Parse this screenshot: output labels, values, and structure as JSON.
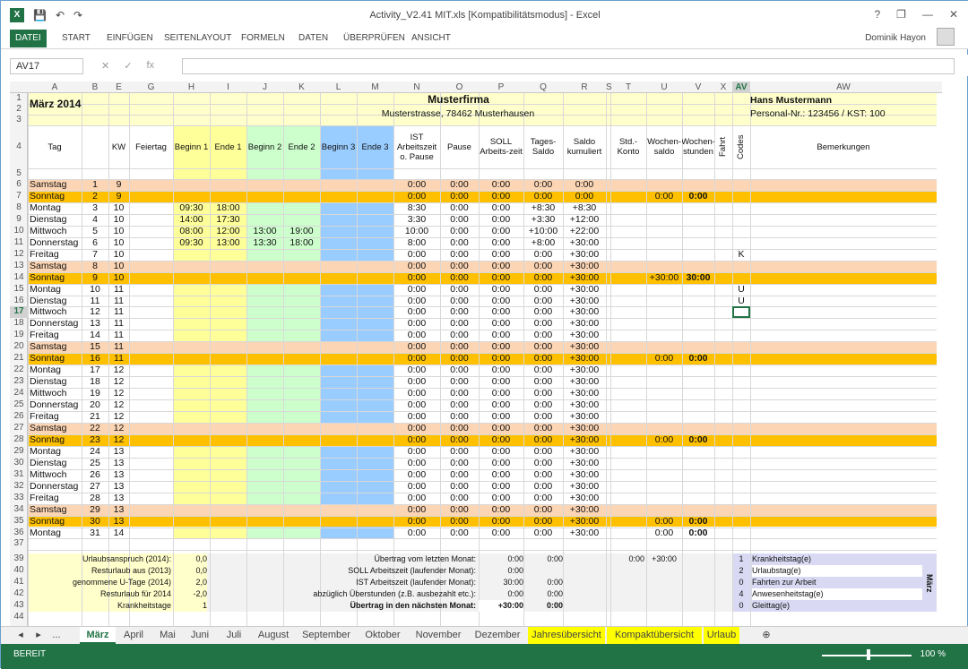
{
  "window": {
    "title": "Activity_V2.41 MIT.xls  [Kompatibilitätsmodus] - Excel",
    "user": "Dominik Hayon",
    "help": "?",
    "controls": [
      "—",
      "❐",
      "✕"
    ]
  },
  "ribbon": {
    "tabs": [
      "DATEI",
      "START",
      "EINFÜGEN",
      "SEITENLAYOUT",
      "FORMELN",
      "DATEN",
      "ÜBERPRÜFEN",
      "ANSICHT"
    ]
  },
  "formula": {
    "namebox": "AV17",
    "fx": "fx",
    "value": ""
  },
  "columns": [
    "A",
    "B",
    "E",
    "G",
    "H",
    "I",
    "J",
    "K",
    "L",
    "M",
    "N",
    "O",
    "P",
    "Q",
    "R",
    "S",
    "T",
    "U",
    "V",
    "X",
    "AV",
    "AW"
  ],
  "rows": [
    "1",
    "2",
    "3",
    "4",
    "5",
    "6",
    "7",
    "8",
    "9",
    "10",
    "11",
    "12",
    "13",
    "14",
    "15",
    "16",
    "17",
    "18",
    "19",
    "20",
    "21",
    "22",
    "23",
    "24",
    "25",
    "26",
    "27",
    "28",
    "29",
    "30",
    "31",
    "32",
    "33",
    "34",
    "35",
    "36",
    "37",
    "39",
    "40",
    "41",
    "42",
    "43",
    "44"
  ],
  "header": {
    "month": "März 2014",
    "company": "Musterfirma",
    "address": "Musterstrasse, 78462 Musterhausen",
    "name": "Hans Mustermann",
    "personal": "Personal-Nr.: 123456 / KST: 100"
  },
  "colheads": {
    "tag": "Tag",
    "kw": "KW",
    "feiertag": "Feiertag",
    "b1": "Beginn 1",
    "e1": "Ende 1",
    "b2": "Beginn 2",
    "e2": "Ende 2",
    "b3": "Beginn 3",
    "e3": "Ende 3",
    "ist": "IST Arbeitszeit o. Pause",
    "pause": "Pause",
    "soll": "SOLL Arbeits-zeit",
    "tsaldo": "Tages-Saldo",
    "saldo": "Saldo kumuliert",
    "std": "Std.-Konto",
    "wsaldo": "Wochen-saldo",
    "wstunden": "Wochen-stunden",
    "fahrt": "Fahrt",
    "codes": "Codes",
    "bem": "Bemerkungen"
  },
  "days": [
    [
      "Samstag",
      "1",
      "9",
      "",
      "",
      "",
      "",
      "",
      "",
      "0:00",
      "0:00",
      "0:00",
      "0:00",
      "0:00",
      "",
      "",
      "",
      ""
    ],
    [
      "Sonntag",
      "2",
      "9",
      "",
      "",
      "",
      "",
      "",
      "",
      "0:00",
      "0:00",
      "0:00",
      "0:00",
      "0:00",
      "",
      "0:00",
      "0:00",
      ""
    ],
    [
      "Montag",
      "3",
      "10",
      "09:30",
      "18:00",
      "",
      "",
      "",
      "",
      "8:30",
      "0:00",
      "0:00",
      "+8:30",
      "+8:30",
      "",
      "",
      "",
      ""
    ],
    [
      "Dienstag",
      "4",
      "10",
      "14:00",
      "17:30",
      "",
      "",
      "",
      "",
      "3:30",
      "0:00",
      "0:00",
      "+3:30",
      "+12:00",
      "",
      "",
      "",
      ""
    ],
    [
      "Mittwoch",
      "5",
      "10",
      "08:00",
      "12:00",
      "13:00",
      "19:00",
      "",
      "",
      "10:00",
      "0:00",
      "0:00",
      "+10:00",
      "+22:00",
      "",
      "",
      "",
      ""
    ],
    [
      "Donnerstag",
      "6",
      "10",
      "09:30",
      "13:00",
      "13:30",
      "18:00",
      "",
      "",
      "8:00",
      "0:00",
      "0:00",
      "+8:00",
      "+30:00",
      "",
      "",
      "",
      ""
    ],
    [
      "Freitag",
      "7",
      "10",
      "",
      "",
      "",
      "",
      "",
      "",
      "0:00",
      "0:00",
      "0:00",
      "0:00",
      "+30:00",
      "",
      "",
      "",
      "K"
    ],
    [
      "Samstag",
      "8",
      "10",
      "",
      "",
      "",
      "",
      "",
      "",
      "0:00",
      "0:00",
      "0:00",
      "0:00",
      "+30:00",
      "",
      "",
      "",
      ""
    ],
    [
      "Sonntag",
      "9",
      "10",
      "",
      "",
      "",
      "",
      "",
      "",
      "0:00",
      "0:00",
      "0:00",
      "0:00",
      "+30:00",
      "",
      "+30:00",
      "30:00",
      ""
    ],
    [
      "Montag",
      "10",
      "11",
      "",
      "",
      "",
      "",
      "",
      "",
      "0:00",
      "0:00",
      "0:00",
      "0:00",
      "+30:00",
      "",
      "",
      "",
      "U"
    ],
    [
      "Dienstag",
      "11",
      "11",
      "",
      "",
      "",
      "",
      "",
      "",
      "0:00",
      "0:00",
      "0:00",
      "0:00",
      "+30:00",
      "",
      "",
      "",
      "U"
    ],
    [
      "Mittwoch",
      "12",
      "11",
      "",
      "",
      "",
      "",
      "",
      "",
      "0:00",
      "0:00",
      "0:00",
      "0:00",
      "+30:00",
      "",
      "",
      "",
      ""
    ],
    [
      "Donnerstag",
      "13",
      "11",
      "",
      "",
      "",
      "",
      "",
      "",
      "0:00",
      "0:00",
      "0:00",
      "0:00",
      "+30:00",
      "",
      "",
      "",
      ""
    ],
    [
      "Freitag",
      "14",
      "11",
      "",
      "",
      "",
      "",
      "",
      "",
      "0:00",
      "0:00",
      "0:00",
      "0:00",
      "+30:00",
      "",
      "",
      "",
      ""
    ],
    [
      "Samstag",
      "15",
      "11",
      "",
      "",
      "",
      "",
      "",
      "",
      "0:00",
      "0:00",
      "0:00",
      "0:00",
      "+30:00",
      "",
      "",
      "",
      ""
    ],
    [
      "Sonntag",
      "16",
      "11",
      "",
      "",
      "",
      "",
      "",
      "",
      "0:00",
      "0:00",
      "0:00",
      "0:00",
      "+30:00",
      "",
      "0:00",
      "0:00",
      ""
    ],
    [
      "Montag",
      "17",
      "12",
      "",
      "",
      "",
      "",
      "",
      "",
      "0:00",
      "0:00",
      "0:00",
      "0:00",
      "+30:00",
      "",
      "",
      "",
      ""
    ],
    [
      "Dienstag",
      "18",
      "12",
      "",
      "",
      "",
      "",
      "",
      "",
      "0:00",
      "0:00",
      "0:00",
      "0:00",
      "+30:00",
      "",
      "",
      "",
      ""
    ],
    [
      "Mittwoch",
      "19",
      "12",
      "",
      "",
      "",
      "",
      "",
      "",
      "0:00",
      "0:00",
      "0:00",
      "0:00",
      "+30:00",
      "",
      "",
      "",
      ""
    ],
    [
      "Donnerstag",
      "20",
      "12",
      "",
      "",
      "",
      "",
      "",
      "",
      "0:00",
      "0:00",
      "0:00",
      "0:00",
      "+30:00",
      "",
      "",
      "",
      ""
    ],
    [
      "Freitag",
      "21",
      "12",
      "",
      "",
      "",
      "",
      "",
      "",
      "0:00",
      "0:00",
      "0:00",
      "0:00",
      "+30:00",
      "",
      "",
      "",
      ""
    ],
    [
      "Samstag",
      "22",
      "12",
      "",
      "",
      "",
      "",
      "",
      "",
      "0:00",
      "0:00",
      "0:00",
      "0:00",
      "+30:00",
      "",
      "",
      "",
      ""
    ],
    [
      "Sonntag",
      "23",
      "12",
      "",
      "",
      "",
      "",
      "",
      "",
      "0:00",
      "0:00",
      "0:00",
      "0:00",
      "+30:00",
      "",
      "0:00",
      "0:00",
      ""
    ],
    [
      "Montag",
      "24",
      "13",
      "",
      "",
      "",
      "",
      "",
      "",
      "0:00",
      "0:00",
      "0:00",
      "0:00",
      "+30:00",
      "",
      "",
      "",
      ""
    ],
    [
      "Dienstag",
      "25",
      "13",
      "",
      "",
      "",
      "",
      "",
      "",
      "0:00",
      "0:00",
      "0:00",
      "0:00",
      "+30:00",
      "",
      "",
      "",
      ""
    ],
    [
      "Mittwoch",
      "26",
      "13",
      "",
      "",
      "",
      "",
      "",
      "",
      "0:00",
      "0:00",
      "0:00",
      "0:00",
      "+30:00",
      "",
      "",
      "",
      ""
    ],
    [
      "Donnerstag",
      "27",
      "13",
      "",
      "",
      "",
      "",
      "",
      "",
      "0:00",
      "0:00",
      "0:00",
      "0:00",
      "+30:00",
      "",
      "",
      "",
      ""
    ],
    [
      "Freitag",
      "28",
      "13",
      "",
      "",
      "",
      "",
      "",
      "",
      "0:00",
      "0:00",
      "0:00",
      "0:00",
      "+30:00",
      "",
      "",
      "",
      ""
    ],
    [
      "Samstag",
      "29",
      "13",
      "",
      "",
      "",
      "",
      "",
      "",
      "0:00",
      "0:00",
      "0:00",
      "0:00",
      "+30:00",
      "",
      "",
      "",
      ""
    ],
    [
      "Sonntag",
      "30",
      "13",
      "",
      "",
      "",
      "",
      "",
      "",
      "0:00",
      "0:00",
      "0:00",
      "0:00",
      "+30:00",
      "",
      "0:00",
      "0:00",
      ""
    ],
    [
      "Montag",
      "31",
      "14",
      "",
      "",
      "",
      "",
      "",
      "",
      "0:00",
      "0:00",
      "0:00",
      "0:00",
      "+30:00",
      "",
      "0:00",
      "0:00",
      ""
    ]
  ],
  "summary_left": [
    [
      "Urlaubsanspruch (2014):",
      "0,0"
    ],
    [
      "Resturlaub aus (2013)",
      "0,0"
    ],
    [
      "genommene U-Tage (2014)",
      "2,0"
    ],
    [
      "Resturlaub für 2014",
      "-2,0"
    ],
    [
      "Krankheitstage",
      "1"
    ]
  ],
  "summary_mid": [
    [
      "Übertrag vom letzten Monat:",
      "0:00",
      "0:00"
    ],
    [
      "SOLL Arbeitszeit (laufender Monat):",
      "0:00",
      ""
    ],
    [
      "IST Arbeitszeit (laufender Monat):",
      "30:00",
      "0:00"
    ],
    [
      "abzüglich Überstunden (z.B. ausbezahlt etc.):",
      "0:00",
      "0:00"
    ],
    [
      "Übertrag in den nächsten Monat:",
      "+30:00",
      "0:00"
    ]
  ],
  "summary_right": [
    "0:00",
    "+30:00"
  ],
  "legend": [
    [
      "1",
      "Krankheitstag(e)"
    ],
    [
      "2",
      "Urlaubstag(e)"
    ],
    [
      "0",
      "Fahrten zur Arbeit"
    ],
    [
      "4",
      "Anwesenheitstag(e)"
    ],
    [
      "0",
      "Gleittag(e)"
    ]
  ],
  "legend_side": "März",
  "sheets": [
    "März",
    "April",
    "Mai",
    "Juni",
    "Juli",
    "August",
    "September",
    "Oktober",
    "November",
    "Dezember",
    "Jahresübersicht",
    "Kompaktübersicht",
    "Urlaub"
  ],
  "sheetnav": [
    "◂",
    "▸",
    "..."
  ],
  "status": {
    "ready": "BEREIT",
    "zoom": "100 %"
  },
  "colors": {
    "excel_green": "#217346",
    "weekend_sat": "#fcd5b4",
    "weekend_sun": "#ffc000",
    "yellow": "#ffff99",
    "green": "#ccffcc",
    "blue": "#99ccff",
    "header_bg": "#ffffcc"
  }
}
